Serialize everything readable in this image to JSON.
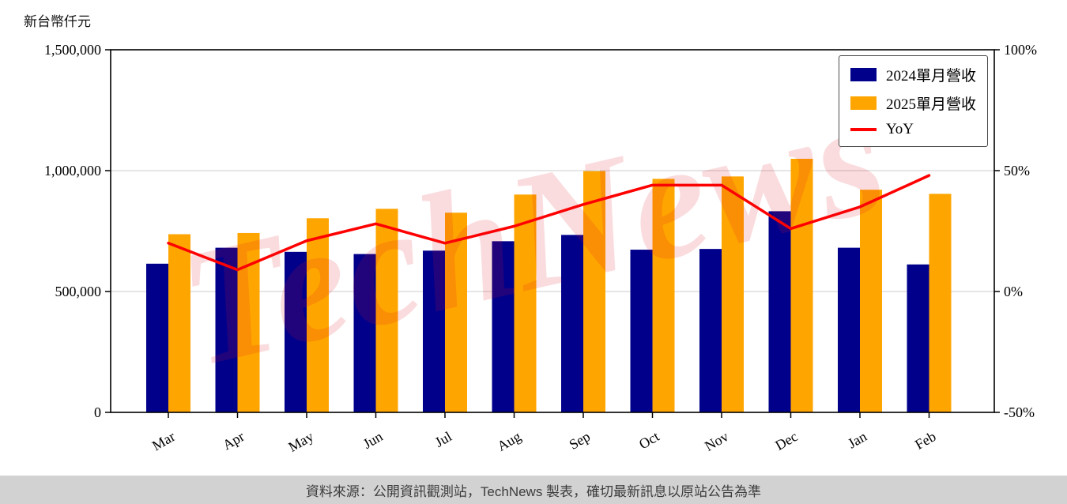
{
  "page": {
    "unit_label": "新台幣仟元",
    "watermark": "TechNews",
    "footer": "資料來源：公開資訊觀測站，TechNews 製表，確切最新訊息以原站公告為準"
  },
  "chart_data": {
    "type": "bar",
    "title": "",
    "xlabel": "",
    "ylabel": "新台幣仟元",
    "grid": true,
    "legend_position": "top-right",
    "categories": [
      "Mar",
      "Apr",
      "May",
      "Jun",
      "Jul",
      "Aug",
      "Sep",
      "Oct",
      "Nov",
      "Dec",
      "Jan",
      "Feb"
    ],
    "series": [
      {
        "name": "2024單月營收",
        "type": "bar",
        "axis": "left",
        "color": "#00008B",
        "values": [
          615000,
          681000,
          664000,
          655000,
          669000,
          708000,
          734000,
          673000,
          676000,
          832000,
          681000,
          612000
        ]
      },
      {
        "name": "2025單月營收",
        "type": "bar",
        "axis": "left",
        "color": "#FFA500",
        "values": [
          737000,
          742000,
          803000,
          842000,
          826000,
          901000,
          998000,
          966000,
          976000,
          1049000,
          921000,
          904000
        ]
      },
      {
        "name": "YoY",
        "type": "line",
        "axis": "right",
        "color": "#FF0000",
        "values": [
          20,
          9,
          21,
          28,
          20,
          27,
          36,
          44,
          44,
          26,
          35,
          48
        ]
      }
    ],
    "left_axis": {
      "min": 0,
      "max": 1500000,
      "tick_values": [
        0,
        500000,
        1000000,
        1500000
      ],
      "ticks": [
        "0",
        "500,000",
        "1,000,000",
        "1,500,000"
      ]
    },
    "right_axis": {
      "min": -50,
      "max": 100,
      "tick_values": [
        -50,
        0,
        50,
        100
      ],
      "ticks": [
        "-50%",
        "0%",
        "50%",
        "100%"
      ]
    },
    "gridline_color": "#cccccc",
    "watermark_color": "#e01624"
  }
}
